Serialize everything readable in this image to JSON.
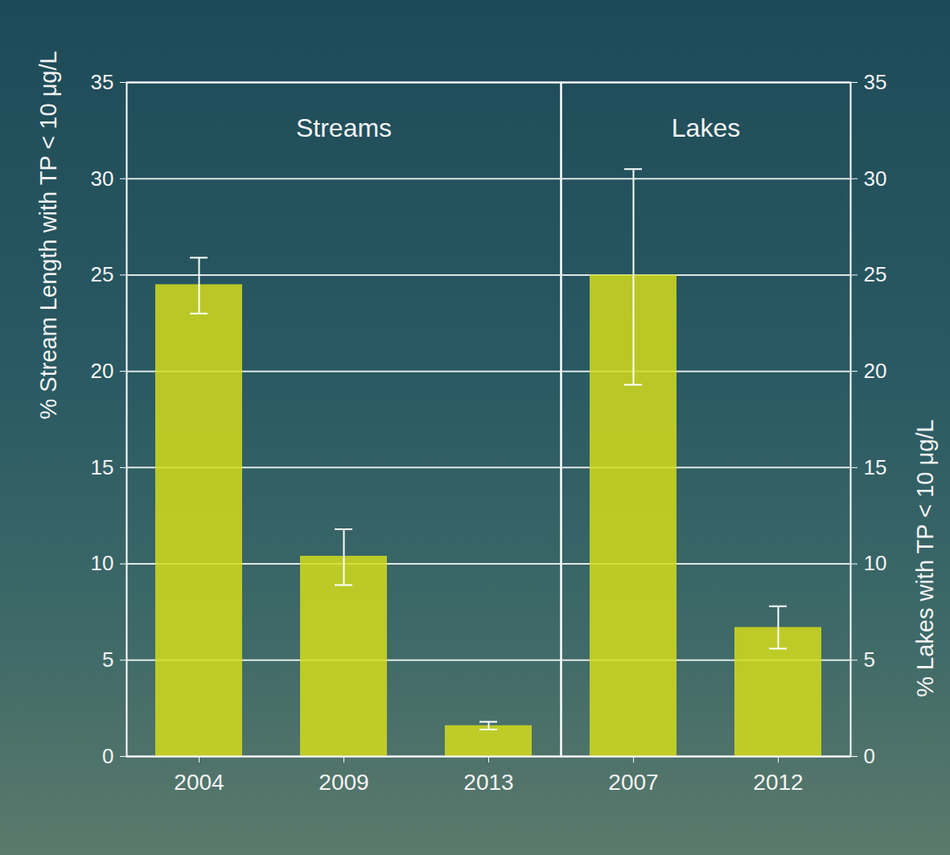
{
  "chart_data": [
    {
      "type": "bar",
      "title": "Streams",
      "y_label": "% Stream Length with TP < 10 μg/L",
      "categories": [
        "2004",
        "2009",
        "2013"
      ],
      "values": [
        24.5,
        10.4,
        1.6
      ],
      "error_low": [
        23.0,
        8.9,
        1.4
      ],
      "error_high": [
        25.9,
        11.8,
        1.8
      ],
      "color": "#d4dc1c",
      "ylim": [
        0,
        35
      ],
      "yticks": [
        0,
        5,
        10,
        15,
        20,
        25,
        30,
        35
      ],
      "grid": true
    },
    {
      "type": "bar",
      "title": "Lakes",
      "y2_label": "% Lakes with TP < 10 μg/L",
      "categories": [
        "2007",
        "2012"
      ],
      "values": [
        25.0,
        6.7
      ],
      "error_low": [
        19.3,
        5.6
      ],
      "error_high": [
        30.5,
        7.8
      ],
      "color": "#d4dc1c",
      "y2lim": [
        0,
        35
      ],
      "y2ticks": [
        0,
        5,
        10,
        15,
        20,
        25,
        30,
        35
      ],
      "grid": true
    }
  ]
}
